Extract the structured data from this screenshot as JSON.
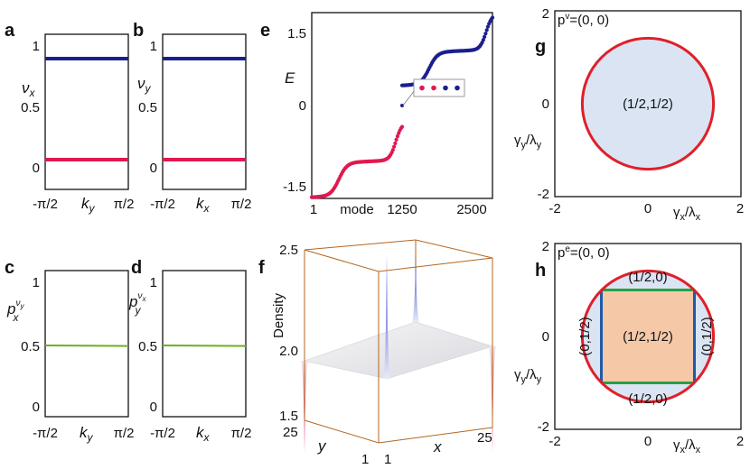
{
  "chart_data": [
    {
      "panel": "a",
      "type": "line",
      "xlabel": "k_y",
      "ylabel": "ν_x",
      "xticks": [
        "-π/2",
        "π/2"
      ],
      "yticks": [
        "0",
        "0.5",
        "1"
      ],
      "ylim": [
        -0.1,
        1.1
      ],
      "series": [
        {
          "color": "#1a1f8f",
          "values": [
            0.9,
            0.9
          ]
        },
        {
          "color": "#e0194f",
          "values": [
            0.1,
            0.1
          ]
        }
      ]
    },
    {
      "panel": "b",
      "type": "line",
      "xlabel": "k_x",
      "ylabel": "ν_y",
      "xticks": [
        "-π/2",
        "π/2"
      ],
      "yticks": [
        "0",
        "0.5",
        "1"
      ],
      "ylim": [
        -0.1,
        1.1
      ],
      "series": [
        {
          "color": "#1a1f8f",
          "values": [
            0.9,
            0.9
          ]
        },
        {
          "color": "#e0194f",
          "values": [
            0.1,
            0.1
          ]
        }
      ]
    },
    {
      "panel": "c",
      "type": "line",
      "xlabel": "k_y",
      "ylabel": "p^{ν_y}_x",
      "xticks": [
        "-π/2",
        "π/2"
      ],
      "yticks": [
        "0",
        "0.5",
        "1"
      ],
      "ylim": [
        -0.1,
        1.1
      ],
      "series": [
        {
          "color": "#6ab023",
          "values": [
            0.5,
            0.5
          ]
        }
      ]
    },
    {
      "panel": "d",
      "type": "line",
      "xlabel": "k_x",
      "ylabel": "p^{ν_x}_y",
      "xticks": [
        "-π/2",
        "π/2"
      ],
      "yticks": [
        "0",
        "0.5",
        "1"
      ],
      "ylim": [
        -0.1,
        1.1
      ],
      "series": [
        {
          "color": "#6ab023",
          "values": [
            0.5,
            0.5
          ]
        }
      ]
    },
    {
      "panel": "e",
      "type": "scatter",
      "xlabel": "mode",
      "ylabel": "E",
      "xticks": [
        "1",
        "1250",
        "2500"
      ],
      "yticks": [
        "-1.5",
        "0",
        "1.5"
      ],
      "xlim": [
        1,
        2500
      ],
      "ylim": [
        -1.62,
        1.62
      ],
      "bands": [
        {
          "color": "#e0194f",
          "x": [
            1,
            1250
          ],
          "y_start": -1.6,
          "y_end": -0.3
        },
        {
          "color": "#1a1f8f",
          "x": [
            1251,
            2500
          ],
          "y_start": 0.35,
          "y_end": 1.6
        }
      ],
      "inset_points": [
        {
          "color": "#e0194f",
          "value": 0
        },
        {
          "color": "#e0194f",
          "value": 0
        },
        {
          "color": "#1a1f8f",
          "value": 0
        },
        {
          "color": "#1a1f8f",
          "value": 0
        }
      ],
      "annotation_point": {
        "x": 1250,
        "y": 0
      }
    },
    {
      "panel": "f",
      "type": "surface",
      "xlabel": "x",
      "ylabel": "y",
      "zlabel": "Density",
      "x_range": [
        1,
        25
      ],
      "y_range": [
        1,
        25
      ],
      "zticks": [
        "1.5",
        "2.0",
        "2.5"
      ],
      "zlim": [
        1.5,
        2.5
      ],
      "plateau": 2.0,
      "corner_peaks": [
        {
          "color": "#2b3fc7",
          "value": 2.5
        },
        {
          "color": "#2b3fc7",
          "value": 2.5
        },
        {
          "color": "#e0194f",
          "value": 1.5
        },
        {
          "color": "#e0194f",
          "value": 1.5
        }
      ]
    },
    {
      "panel": "g",
      "type": "phase-diagram",
      "xlabel": "γ_x/λ_x",
      "ylabel": "γ_y/λ_y",
      "xticks": [
        "-2",
        "0",
        "2"
      ],
      "yticks": [
        "-2",
        "0",
        "2"
      ],
      "xlim": [
        -2,
        2
      ],
      "ylim": [
        -2,
        2
      ],
      "title": "p^v=(0, 0)",
      "circle_radius": 1.41,
      "regions": [
        {
          "label": "(1/2,1/2)",
          "color": "#dae4f3"
        }
      ],
      "boundary_color": "#e01f2a"
    },
    {
      "panel": "h",
      "type": "phase-diagram",
      "xlabel": "γ_x/λ_x",
      "ylabel": "γ_y/λ_y",
      "xticks": [
        "-2",
        "0",
        "2"
      ],
      "yticks": [
        "-2",
        "0",
        "2"
      ],
      "xlim": [
        -2,
        2
      ],
      "ylim": [
        -2,
        2
      ],
      "title": "p^e=(0, 0)",
      "circle_radius": 1.41,
      "square_half_width": 1.0,
      "regions": [
        {
          "label": "(1/2,1/2)",
          "color": "#f5c8a8"
        },
        {
          "label": "(1/2,0)",
          "color": "#dae4f3"
        },
        {
          "label": "(0,1/2)",
          "color": "#dae4f3"
        }
      ],
      "boundary_color": "#e01f2a",
      "square_edge_colors": {
        "horizontal": "#2aa040",
        "vertical": "#1e5aa8"
      }
    }
  ]
}
